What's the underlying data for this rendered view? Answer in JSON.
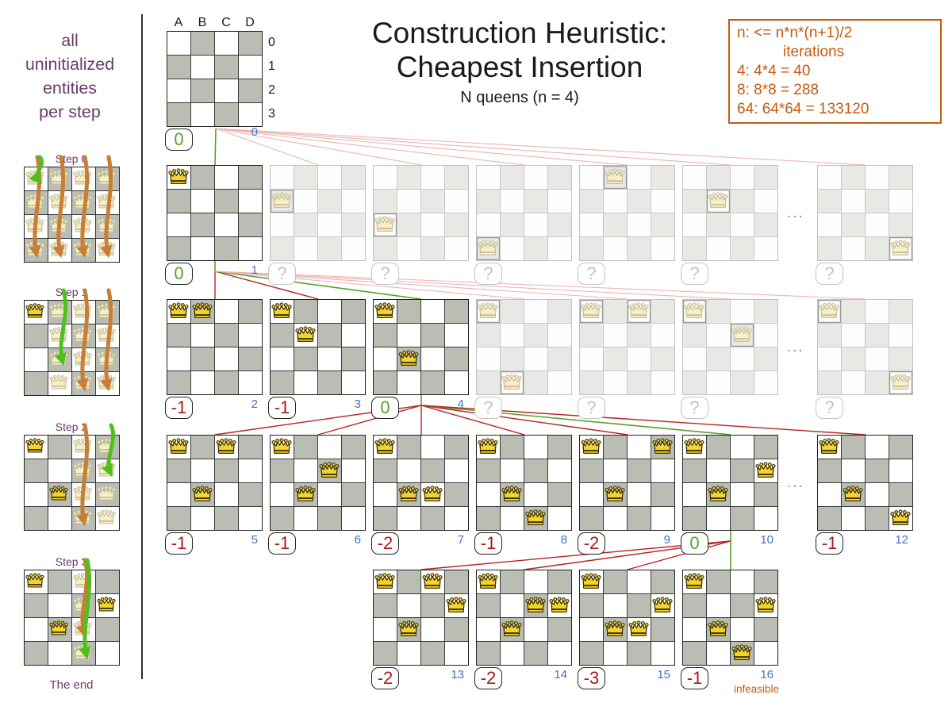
{
  "header": {
    "title_line1": "Construction Heuristic:",
    "title_line2": "Cheapest Insertion",
    "subtitle": "N queens (n = 4)"
  },
  "info_box": {
    "line1": "n: <= n*n*(n+1)/2",
    "line2": "iterations",
    "line3": "4: 4*4 = 40",
    "line4": "8: 8*8 = 288",
    "line5": "64: 64*64 = 133120"
  },
  "sidebar": {
    "intro_lines": [
      "all",
      "uninitialized",
      "entities",
      "per step"
    ],
    "end_label": "The end",
    "steps": [
      {
        "label": "Step 0",
        "solid": [],
        "faded_cols": [
          0,
          1,
          2,
          3
        ],
        "orange_arrows": [
          {
            "col": 0,
            "to_row": 3
          },
          {
            "col": 1,
            "to_row": 3
          },
          {
            "col": 2,
            "to_row": 3
          },
          {
            "col": 3,
            "to_row": 3
          }
        ],
        "green_arrow": {
          "col": 0,
          "to_row": 0
        }
      },
      {
        "label": "Step 1",
        "solid": [
          [
            0,
            0
          ]
        ],
        "faded_cols": [
          1,
          2,
          3
        ],
        "orange_arrows": [
          {
            "col": 2,
            "to_row": 3
          },
          {
            "col": 3,
            "to_row": 3
          }
        ],
        "green_arrow": {
          "col": 1,
          "to_row": 2
        }
      },
      {
        "label": "Step 2",
        "solid": [
          [
            0,
            0
          ],
          [
            1,
            2
          ]
        ],
        "faded_cols": [
          2,
          3
        ],
        "orange_arrows": [
          {
            "col": 2,
            "to_row": 3
          }
        ],
        "green_arrow": {
          "col": 3,
          "to_row": 1
        }
      },
      {
        "label": "Step 3",
        "solid": [
          [
            0,
            0
          ],
          [
            1,
            2
          ],
          [
            3,
            1
          ]
        ],
        "faded_cols": [
          2
        ],
        "orange_arrows": [
          {
            "col": 2,
            "to_row": 2
          }
        ],
        "green_arrow": {
          "col": 2,
          "to_row": 3
        }
      }
    ]
  },
  "root_board": {
    "col_labels": [
      "A",
      "B",
      "C",
      "D"
    ],
    "row_labels": [
      "0",
      "1",
      "2",
      "3"
    ],
    "score": "0",
    "score_type": "good",
    "iter": "0"
  },
  "tree_rows": [
    {
      "ellipsis": "...",
      "boards": [
        {
          "col": 0,
          "queens": [
            [
              0,
              0
            ]
          ],
          "score": "0",
          "score_type": "good",
          "iter": "1",
          "selected": true
        },
        {
          "col": 1,
          "faded": true,
          "queens": [
            [
              0,
              1
            ]
          ],
          "score": "?"
        },
        {
          "col": 2,
          "faded": true,
          "queens": [
            [
              0,
              2
            ]
          ],
          "score": "?"
        },
        {
          "col": 3,
          "faded": true,
          "queens": [
            [
              0,
              3
            ]
          ],
          "score": "?"
        },
        {
          "col": 4,
          "faded": true,
          "queens": [
            [
              1,
              0
            ]
          ],
          "score": "?"
        },
        {
          "col": 5,
          "faded": true,
          "queens": [
            [
              1,
              1
            ]
          ],
          "score": "?"
        },
        {
          "col": 6,
          "faded": true,
          "queens": [
            [
              3,
              3
            ]
          ],
          "score": "?"
        }
      ]
    },
    {
      "ellipsis": "...",
      "boards": [
        {
          "col": 0,
          "queens": [
            [
              0,
              0
            ],
            [
              1,
              0
            ]
          ],
          "score": "-1",
          "score_type": "bad",
          "iter": "2"
        },
        {
          "col": 1,
          "queens": [
            [
              0,
              0
            ],
            [
              1,
              1
            ]
          ],
          "score": "-1",
          "score_type": "bad",
          "iter": "3"
        },
        {
          "col": 2,
          "queens": [
            [
              0,
              0
            ],
            [
              1,
              2
            ]
          ],
          "score": "0",
          "score_type": "good",
          "iter": "4",
          "selected": true
        },
        {
          "col": 3,
          "faded": true,
          "queens": [
            [
              0,
              0
            ],
            [
              1,
              3
            ]
          ],
          "score": "?"
        },
        {
          "col": 4,
          "faded": true,
          "queens": [
            [
              0,
              0
            ],
            [
              2,
              0
            ]
          ],
          "score": "?"
        },
        {
          "col": 5,
          "faded": true,
          "queens": [
            [
              0,
              0
            ],
            [
              2,
              1
            ]
          ],
          "score": "?"
        },
        {
          "col": 6,
          "faded": true,
          "queens": [
            [
              0,
              0
            ],
            [
              3,
              3
            ]
          ],
          "score": "?"
        }
      ]
    },
    {
      "ellipsis": "...",
      "boards": [
        {
          "col": 0,
          "queens": [
            [
              0,
              0
            ],
            [
              2,
              0
            ],
            [
              1,
              2
            ]
          ],
          "score": "-1",
          "score_type": "bad",
          "iter": "5"
        },
        {
          "col": 1,
          "queens": [
            [
              0,
              0
            ],
            [
              2,
              1
            ],
            [
              1,
              2
            ]
          ],
          "score": "-1",
          "score_type": "bad",
          "iter": "6"
        },
        {
          "col": 2,
          "queens": [
            [
              0,
              0
            ],
            [
              1,
              2
            ],
            [
              2,
              2
            ]
          ],
          "score": "-2",
          "score_type": "bad",
          "iter": "7"
        },
        {
          "col": 3,
          "queens": [
            [
              0,
              0
            ],
            [
              1,
              2
            ],
            [
              2,
              3
            ]
          ],
          "score": "-1",
          "score_type": "bad",
          "iter": "8"
        },
        {
          "col": 4,
          "queens": [
            [
              0,
              0
            ],
            [
              3,
              0
            ],
            [
              1,
              2
            ]
          ],
          "score": "-2",
          "score_type": "bad",
          "iter": "9"
        },
        {
          "col": 5,
          "queens": [
            [
              0,
              0
            ],
            [
              3,
              1
            ],
            [
              1,
              2
            ]
          ],
          "score": "0",
          "score_type": "good",
          "iter": "10",
          "selected": true
        },
        {
          "col": 6,
          "queens": [
            [
              0,
              0
            ],
            [
              1,
              2
            ],
            [
              3,
              3
            ]
          ],
          "score": "-1",
          "score_type": "bad",
          "iter": "12"
        }
      ]
    },
    {
      "boards": [
        {
          "col": 2,
          "queens": [
            [
              0,
              0
            ],
            [
              2,
              0
            ],
            [
              3,
              1
            ],
            [
              1,
              2
            ]
          ],
          "score": "-2",
          "score_type": "bad",
          "iter": "13"
        },
        {
          "col": 3,
          "queens": [
            [
              0,
              0
            ],
            [
              2,
              1
            ],
            [
              3,
              1
            ],
            [
              1,
              2
            ]
          ],
          "score": "-2",
          "score_type": "bad",
          "iter": "14"
        },
        {
          "col": 4,
          "queens": [
            [
              0,
              0
            ],
            [
              3,
              1
            ],
            [
              1,
              2
            ],
            [
              2,
              2
            ]
          ],
          "score": "-3",
          "score_type": "bad",
          "iter": "15"
        },
        {
          "col": 5,
          "queens": [
            [
              0,
              0
            ],
            [
              3,
              1
            ],
            [
              1,
              2
            ],
            [
              2,
              3
            ]
          ],
          "score": "-1",
          "score_type": "bad",
          "iter": "16",
          "selected": true,
          "note": "infeasible"
        }
      ]
    }
  ],
  "colors": {
    "accent_orange": "#c55a11",
    "purple": "#6b3a6b",
    "score_green": "#5aa02c",
    "score_red": "#aa1a1a",
    "iter_blue": "#4472c4",
    "line_pink": "#eab4b4",
    "line_red": "#b32424",
    "line_green": "#5aa02c",
    "queen_gold": "#f5d327",
    "board_gray": "#b9bdb4"
  }
}
